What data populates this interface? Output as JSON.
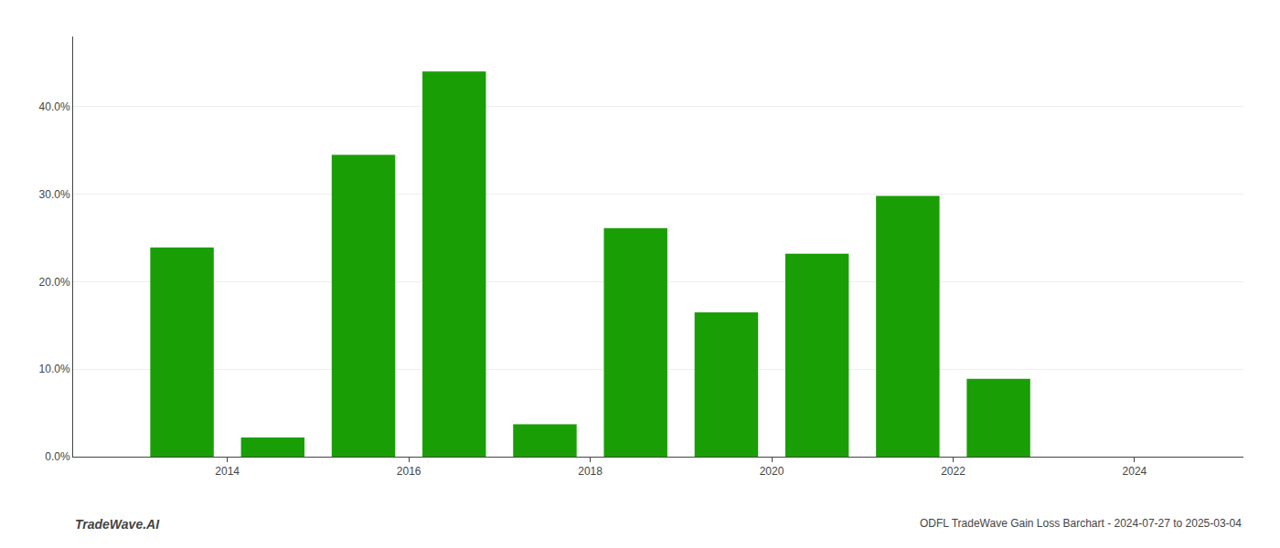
{
  "chart_data": {
    "type": "bar",
    "x": [
      2013,
      2014,
      2015,
      2016,
      2017,
      2018,
      2019,
      2020,
      2021,
      2022,
      2023
    ],
    "values": [
      0.239,
      0.022,
      0.345,
      0.44,
      0.037,
      0.261,
      0.165,
      0.232,
      0.298,
      0.089,
      0.0
    ],
    "color": "#1a9e06",
    "xlim": [
      2012.3,
      2025.2
    ],
    "xticks": [
      2014,
      2016,
      2018,
      2020,
      2022,
      2024
    ],
    "ylim": [
      0.0,
      0.48
    ],
    "yticks": [
      {
        "value": 0.0,
        "label": "0.0%"
      },
      {
        "value": 0.1,
        "label": "10.0%"
      },
      {
        "value": 0.2,
        "label": "20.0%"
      },
      {
        "value": 0.3,
        "label": "30.0%"
      },
      {
        "value": 0.4,
        "label": "40.0%"
      }
    ],
    "grid": true,
    "annotations": [
      "TradeWave.AI",
      "ODFL TradeWave Gain Loss Barchart - 2024-07-27 to 2025-03-04"
    ]
  }
}
